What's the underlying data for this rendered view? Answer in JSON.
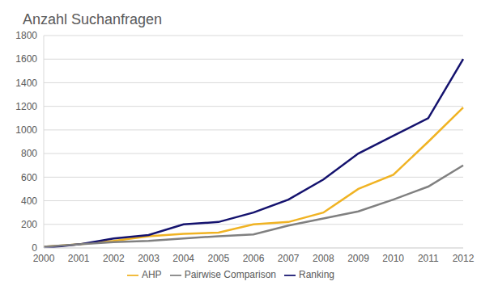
{
  "chart_data": {
    "type": "line",
    "title": "Anzahl Suchanfragen",
    "categories": [
      "2000",
      "2001",
      "2002",
      "2003",
      "2004",
      "2005",
      "2006",
      "2007",
      "2008",
      "2009",
      "2010",
      "2011",
      "2012"
    ],
    "series": [
      {
        "name": "AHP",
        "color": "#f0b323",
        "values": [
          10,
          30,
          60,
          100,
          120,
          130,
          200,
          220,
          300,
          500,
          620,
          900,
          1190
        ]
      },
      {
        "name": "Ranking",
        "color": "#14126e",
        "values": [
          0,
          30,
          80,
          110,
          200,
          220,
          300,
          410,
          580,
          800,
          950,
          1100,
          1600
        ]
      },
      {
        "name": "Pairwise Comparison",
        "color": "#808080",
        "values": [
          10,
          30,
          50,
          60,
          80,
          100,
          115,
          190,
          250,
          310,
          410,
          520,
          700
        ]
      }
    ],
    "ylim": [
      0,
      1800
    ],
    "yticks": [
      0,
      200,
      400,
      600,
      800,
      1000,
      1200,
      1400,
      1600,
      1800
    ],
    "grid": true,
    "legend": "bottom"
  }
}
